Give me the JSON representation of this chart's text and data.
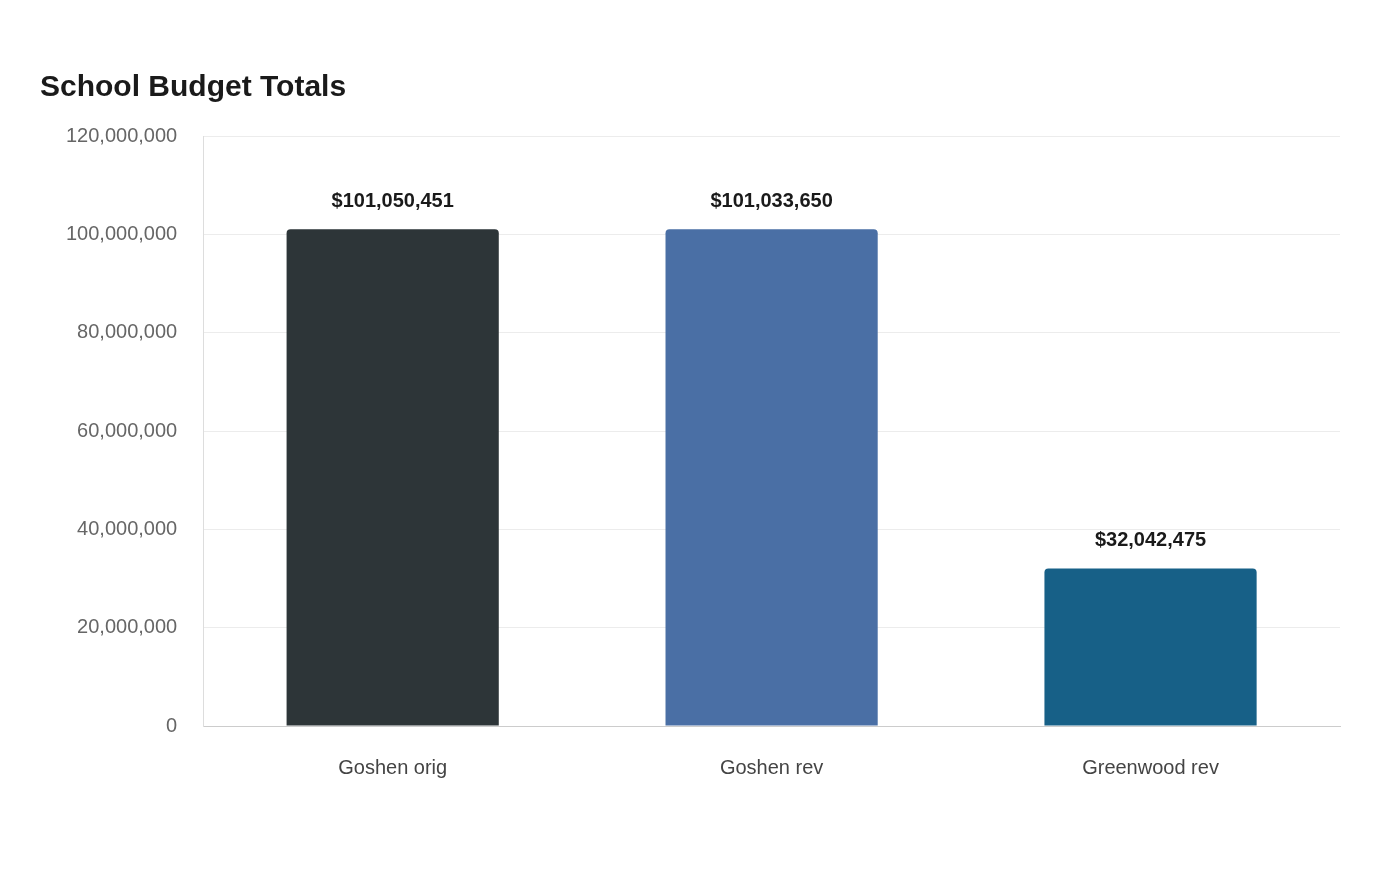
{
  "chart_data": {
    "type": "bar",
    "title": "School Budget Totals",
    "categories": [
      "Goshen orig",
      "Goshen rev",
      "Greenwood rev"
    ],
    "values": [
      101050451,
      101033650,
      32042475
    ],
    "colors": [
      "#2d3538",
      "#4a6fa5",
      "#176087"
    ],
    "value_labels": [
      "$101,050,451",
      "$101,033,650",
      "$32,042,475"
    ],
    "ylim": [
      0,
      120000000
    ],
    "yticks": [
      0,
      {
        "value": 20000000,
        "label": "20,000,000"
      },
      {
        "value": 40000000,
        "label": "40,000,000"
      },
      {
        "value": 60000000,
        "label": "60,000,000"
      },
      {
        "value": 80000000,
        "label": "80,000,000"
      },
      {
        "value": 100000000,
        "label": "100,000,000"
      },
      {
        "value": 120000000,
        "label": "120,000,000"
      }
    ],
    "grid": "y",
    "legend": false
  }
}
